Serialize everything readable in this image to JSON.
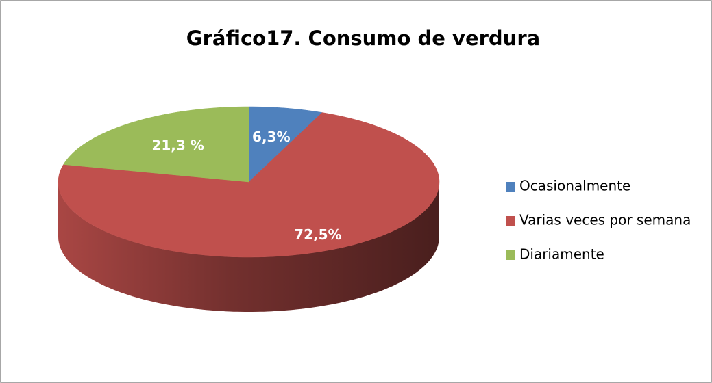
{
  "chart_data": {
    "type": "pie",
    "title": "Gráfico17. Consumo de verdura",
    "categories": [
      "Ocasionalmente",
      "Varias veces por semana",
      "Diariamente"
    ],
    "values": [
      6.3,
      72.5,
      21.3
    ],
    "value_labels": [
      "6,3%",
      "72,5%",
      "21,3 %"
    ],
    "colors": [
      "#4f81bd",
      "#c0504d",
      "#9bbb59"
    ],
    "legend": "right"
  }
}
